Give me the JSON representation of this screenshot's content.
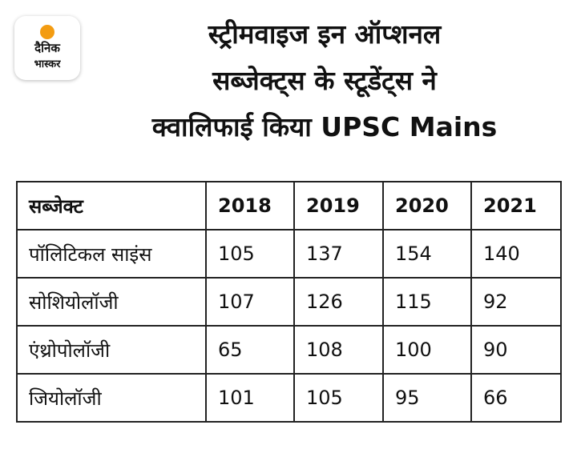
{
  "logo": {
    "line1": "दैनिक",
    "line2": "भास्कर",
    "accent": "#f39c12"
  },
  "title": {
    "line1": "स्ट्रीमवाइज इन ऑप्शनल",
    "line2": "सब्जेक्ट्स के स्टूडेंट्स ने",
    "line3": "क्वालिफाई किया UPSC Mains"
  },
  "table": {
    "headers": [
      "सब्जेक्ट",
      "2018",
      "2019",
      "2020",
      "2021"
    ],
    "rows": [
      [
        "पॉलिटिकल साइंस",
        "105",
        "137",
        "154",
        "140"
      ],
      [
        "सोशियोलॉजी",
        "107",
        "126",
        "115",
        "92"
      ],
      [
        "एंथ्रोपोलॉजी",
        "65",
        "108",
        "100",
        "90"
      ],
      [
        "जियोलॉजी",
        "101",
        "105",
        "95",
        "66"
      ]
    ]
  }
}
